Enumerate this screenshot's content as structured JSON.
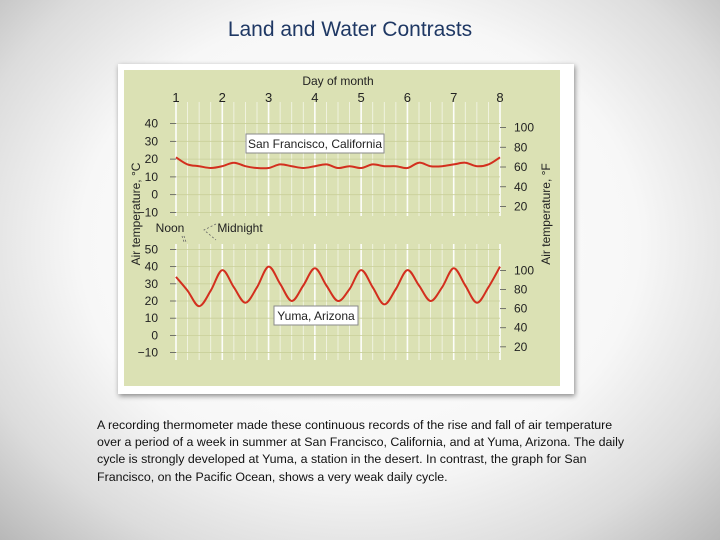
{
  "slide": {
    "title": "Land and Water Contrasts",
    "caption": "A recording thermometer made these continuous records of the rise and fall of air temperature over a period of a week in summer at San Francisco, California, and at Yuma, Arizona. The daily cycle is strongly developed at Yuma, a station in the desert. In contrast, the graph for San Francisco, on the Pacific Ocean, shows a very weak daily cycle."
  },
  "colors": {
    "plot_background": "#dbe1b4",
    "grid_vertical": "#ffffff",
    "grid_horizontal": "#c9cf9a",
    "series": "#d32f1e",
    "label_box_border": "#8a8a8a"
  },
  "chart_data": [
    {
      "type": "line",
      "title": "",
      "station_label": "San Francisco, California",
      "xlabel": "Day of month",
      "x_ticks": [
        "1",
        "2",
        "3",
        "4",
        "5",
        "6",
        "7",
        "8"
      ],
      "xlim": [
        1,
        8
      ],
      "ylabel_left": "Air temperature, °C",
      "ylabel_right": "Air temperature, °F",
      "left_ticks": [
        "40",
        "30",
        "20",
        "10",
        "0",
        "−10"
      ],
      "right_ticks": [
        "100",
        "80",
        "60",
        "40",
        "20"
      ],
      "ylim_c": [
        -12,
        42
      ],
      "grid": true,
      "series": [
        {
          "x": [
            1.0,
            1.25,
            1.5,
            1.75,
            2.0,
            2.25,
            2.5,
            2.75,
            3.0,
            3.25,
            3.5,
            3.75,
            4.0,
            4.25,
            4.5,
            4.75,
            5.0,
            5.25,
            5.5,
            5.75,
            6.0,
            6.25,
            6.5,
            6.75,
            7.0,
            7.25,
            7.5,
            7.75,
            8.0
          ],
          "y_c": [
            21,
            17,
            16,
            15,
            16,
            18,
            16,
            15,
            15,
            17,
            16,
            15,
            16,
            17,
            15,
            16,
            15,
            17,
            16,
            16,
            15,
            18,
            16,
            16,
            17,
            18,
            16,
            17,
            21
          ]
        }
      ]
    },
    {
      "type": "line",
      "title": "",
      "station_label": "Yuma, Arizona",
      "xlabel": "",
      "x_ticks": [],
      "xlim": [
        1,
        8
      ],
      "ylabel_left": "Air temperature, °C",
      "ylabel_right": "Air temperature, °F",
      "left_ticks": [
        "50",
        "40",
        "30",
        "20",
        "10",
        "0",
        "−10"
      ],
      "right_ticks": [
        "100",
        "80",
        "60",
        "40",
        "20"
      ],
      "ylim_c": [
        -12,
        52
      ],
      "grid": true,
      "annotations": [
        "Noon",
        "Midnight"
      ],
      "series": [
        {
          "x": [
            1.0,
            1.25,
            1.5,
            1.75,
            2.0,
            2.25,
            2.5,
            2.75,
            3.0,
            3.25,
            3.5,
            3.75,
            4.0,
            4.25,
            4.5,
            4.75,
            5.0,
            5.25,
            5.5,
            5.75,
            6.0,
            6.25,
            6.5,
            6.75,
            7.0,
            7.25,
            7.5,
            7.75,
            8.0
          ],
          "y_c": [
            34,
            26,
            17,
            26,
            38,
            28,
            19,
            28,
            40,
            30,
            20,
            29,
            39,
            29,
            20,
            27,
            38,
            28,
            18,
            27,
            38,
            29,
            20,
            28,
            39,
            29,
            19,
            28,
            40
          ]
        }
      ]
    }
  ]
}
